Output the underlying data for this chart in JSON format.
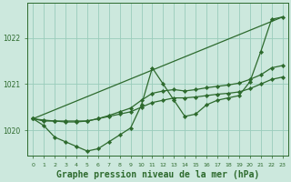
{
  "bg_color": "#cce8dd",
  "line_color": "#2d6a2d",
  "grid_color": "#99ccbb",
  "xlabel": "Graphe pression niveau de la mer (hPa)",
  "xlabel_fontsize": 7,
  "yticks": [
    1020,
    1021,
    1022
  ],
  "ytick_labels": [
    "1020",
    "1021",
    "1022"
  ],
  "xlim": [
    -0.5,
    23.5
  ],
  "ylim": [
    1019.45,
    1022.75
  ],
  "lines": [
    {
      "x": [
        0,
        1,
        2,
        3,
        4,
        5,
        6,
        7,
        8,
        9,
        10,
        11,
        12,
        13,
        14,
        15,
        16,
        17,
        18,
        19,
        20,
        21,
        22,
        23
      ],
      "y": [
        1020.25,
        1020.1,
        1019.85,
        1019.75,
        1019.65,
        1019.55,
        1019.6,
        1019.75,
        1019.9,
        1020.05,
        1020.55,
        1021.35,
        1021.0,
        1020.65,
        1020.3,
        1020.35,
        1020.55,
        1020.65,
        1020.7,
        1020.75,
        1021.05,
        1021.7,
        1022.4,
        1022.45
      ],
      "lw": 0.9,
      "marker": "D",
      "ms": 2.2
    },
    {
      "x": [
        0,
        23
      ],
      "y": [
        1020.25,
        1022.45
      ],
      "lw": 0.9,
      "marker": null,
      "ms": 0
    },
    {
      "x": [
        0,
        1,
        2,
        3,
        4,
        5,
        6,
        7,
        8,
        9,
        10,
        11,
        12,
        13,
        14,
        15,
        16,
        17,
        18,
        19,
        20,
        21,
        22,
        23
      ],
      "y": [
        1020.25,
        1020.2,
        1020.2,
        1020.2,
        1020.2,
        1020.2,
        1020.25,
        1020.3,
        1020.35,
        1020.4,
        1020.5,
        1020.6,
        1020.65,
        1020.7,
        1020.7,
        1020.72,
        1020.75,
        1020.78,
        1020.8,
        1020.83,
        1020.9,
        1021.0,
        1021.1,
        1021.15
      ],
      "lw": 0.9,
      "marker": "D",
      "ms": 2.2
    },
    {
      "x": [
        0,
        1,
        2,
        3,
        4,
        5,
        6,
        7,
        8,
        9,
        10,
        11,
        12,
        13,
        14,
        15,
        16,
        17,
        18,
        19,
        20,
        21,
        22,
        23
      ],
      "y": [
        1020.25,
        1020.22,
        1020.2,
        1020.18,
        1020.18,
        1020.2,
        1020.25,
        1020.32,
        1020.4,
        1020.48,
        1020.65,
        1020.8,
        1020.85,
        1020.88,
        1020.85,
        1020.88,
        1020.92,
        1020.95,
        1020.98,
        1021.02,
        1021.1,
        1021.2,
        1021.35,
        1021.4
      ],
      "lw": 0.9,
      "marker": "D",
      "ms": 2.2
    }
  ]
}
